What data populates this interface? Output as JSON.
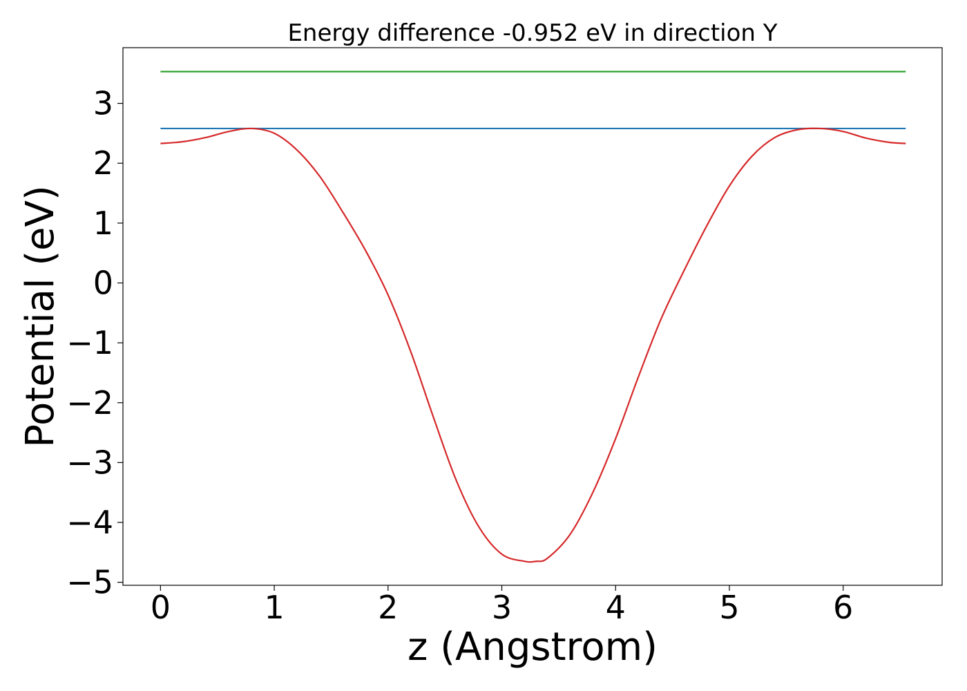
{
  "chart_data": {
    "type": "line",
    "title": "Energy difference -0.952 eV in direction Y",
    "xlabel": "z (Angstrom)",
    "ylabel": "Potential (eV)",
    "xlim": [
      -0.33,
      6.87
    ],
    "ylim": [
      -5.05,
      3.93
    ],
    "xticks": [
      0,
      1,
      2,
      3,
      4,
      5,
      6
    ],
    "xtick_labels": [
      "0",
      "1",
      "2",
      "3",
      "4",
      "5",
      "6"
    ],
    "yticks": [
      3,
      2,
      1,
      0,
      -1,
      -2,
      -3,
      -4,
      -5
    ],
    "ytick_labels": [
      "3",
      "2",
      "1",
      "0",
      "−1",
      "−2",
      "−3",
      "−4",
      "−5"
    ],
    "grid": false,
    "legend": "none",
    "series": [
      {
        "color": "#d62728",
        "x": [
          0,
          0.2,
          0.4,
          0.6,
          0.8,
          1.0,
          1.2,
          1.4,
          1.6,
          1.8,
          2.0,
          2.2,
          2.4,
          2.6,
          2.8,
          3.0,
          3.2,
          3.3,
          3.4,
          3.6,
          3.8,
          4.0,
          4.2,
          4.4,
          4.6,
          4.8,
          5.0,
          5.2,
          5.4,
          5.6,
          5.8,
          6.0,
          6.2,
          6.4,
          6.55
        ],
        "y": [
          2.33,
          2.36,
          2.43,
          2.53,
          2.58,
          2.5,
          2.22,
          1.78,
          1.19,
          0.55,
          -0.2,
          -1.15,
          -2.25,
          -3.3,
          -4.08,
          -4.53,
          -4.65,
          -4.65,
          -4.6,
          -4.2,
          -3.5,
          -2.6,
          -1.57,
          -0.6,
          0.2,
          0.95,
          1.62,
          2.12,
          2.43,
          2.56,
          2.58,
          2.53,
          2.42,
          2.35,
          2.33
        ]
      },
      {
        "color": "#1f77b4",
        "x": [
          0,
          6.55
        ],
        "y": [
          2.58,
          2.58
        ]
      },
      {
        "color": "#2ca02c",
        "x": [
          0,
          6.55
        ],
        "y": [
          3.53,
          3.53
        ]
      }
    ]
  }
}
